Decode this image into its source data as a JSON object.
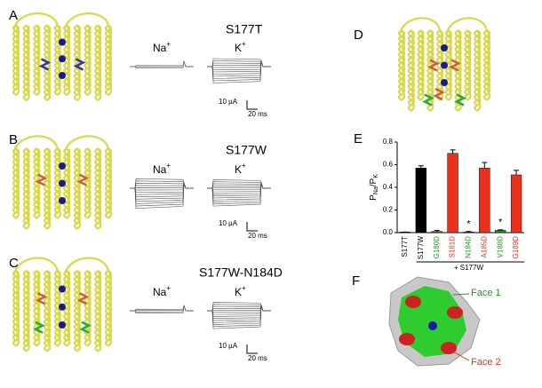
{
  "panel_labels": [
    "A",
    "B",
    "C",
    "D",
    "E",
    "F"
  ],
  "panel_titles": [
    "S177T",
    "S177W",
    "S177W-N184D"
  ],
  "ions": {
    "na": "Na",
    "k": "K",
    "plus": "+"
  },
  "scale": {
    "current": "10 µA",
    "time": "20 ms"
  },
  "chart_data": {
    "type": "bar",
    "ylabel": {
      "p": "P",
      "na": "Na",
      "slash": "/",
      "k": "K"
    },
    "categories": [
      "S177T",
      "S177W",
      "G180D",
      "S181D",
      "N184D",
      "A185D",
      "V188D",
      "G189D"
    ],
    "category_colors": [
      "#000000",
      "#000000",
      "#1a9a1a",
      "#e8321e",
      "#1a9a1a",
      "#e8321e",
      "#1a9a1a",
      "#e8321e"
    ],
    "values": [
      0.005,
      0.57,
      0.01,
      0.7,
      0.005,
      0.57,
      0.02,
      0.51
    ],
    "errors": [
      0.0,
      0.02,
      0.01,
      0.03,
      0.005,
      0.05,
      0.005,
      0.04
    ],
    "colors": [
      "#000000",
      "#000000",
      "#1a9a1a",
      "#e8321e",
      "#1a9a1a",
      "#e8321e",
      "#1a9a1a",
      "#e8321e"
    ],
    "annotations": [
      {
        "category": 4,
        "text": "*"
      },
      {
        "category": 6,
        "text": "*"
      }
    ],
    "group_label": "+ S177W",
    "ylim": [
      0,
      0.8
    ],
    "yticks": [
      {
        "value": 0,
        "label": "0.0"
      },
      {
        "value": 0.2,
        "label": "0.2"
      },
      {
        "value": 0.4,
        "label": "0.4"
      },
      {
        "value": 0.6,
        "label": "0.6"
      },
      {
        "value": 0.8,
        "label": "0.8"
      }
    ]
  },
  "face_labels": [
    "Face 1",
    "Face 2"
  ],
  "face_colors": [
    "#1a9a1a",
    "#e8321e"
  ]
}
